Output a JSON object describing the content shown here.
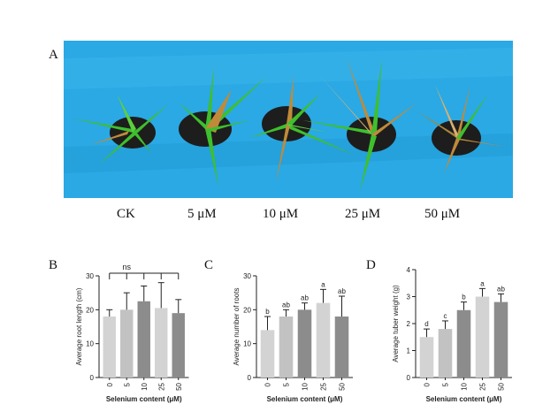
{
  "figure": {
    "panel_a_letter": "A",
    "photo_labels": [
      "CK",
      "5 μM",
      "10 μM",
      "25 μM",
      "50 μM"
    ],
    "colors": {
      "background_blue": "#2aa9e4",
      "leaf_green": "#3fbf2e",
      "leaf_brown": "#c08a3a",
      "pot": "#1d1d1d"
    }
  },
  "chart_data": [
    {
      "panel": "B",
      "type": "bar",
      "categories": [
        "0",
        "5",
        "10",
        "25",
        "50"
      ],
      "values": [
        18,
        20,
        22.5,
        20.5,
        19
      ],
      "errors": [
        2,
        5,
        4.5,
        7.5,
        4
      ],
      "letters": [
        "",
        "",
        "",
        "",
        ""
      ],
      "colors": [
        "#d3d3d3",
        "#c2c2c2",
        "#8c8c8c",
        "#d3d3d3",
        "#8c8c8c"
      ],
      "annotation": "ns",
      "xlabel": "Selenium content (μM)",
      "ylabel": "Average root length (cm)",
      "ylim": [
        0,
        30
      ],
      "yticks": [
        "0",
        "10",
        "20",
        "30"
      ]
    },
    {
      "panel": "C",
      "type": "bar",
      "categories": [
        "0",
        "5",
        "10",
        "25",
        "50"
      ],
      "values": [
        14,
        18,
        20,
        22,
        18
      ],
      "errors": [
        4,
        2,
        2,
        4,
        6
      ],
      "letters": [
        "b",
        "ab",
        "ab",
        "a",
        "ab"
      ],
      "colors": [
        "#d3d3d3",
        "#c2c2c2",
        "#8c8c8c",
        "#d3d3d3",
        "#8c8c8c"
      ],
      "annotation": "",
      "xlabel": "Selenium content (μM)",
      "ylabel": "Average number of roots",
      "ylim": [
        0,
        30
      ],
      "yticks": [
        "0",
        "10",
        "20",
        "30"
      ]
    },
    {
      "panel": "D",
      "type": "bar",
      "categories": [
        "0",
        "5",
        "10",
        "25",
        "50"
      ],
      "values": [
        1.5,
        1.8,
        2.5,
        3.0,
        2.8
      ],
      "errors": [
        0.3,
        0.3,
        0.3,
        0.3,
        0.3
      ],
      "letters": [
        "d",
        "c",
        "b",
        "a",
        "ab"
      ],
      "colors": [
        "#d3d3d3",
        "#c2c2c2",
        "#8c8c8c",
        "#d3d3d3",
        "#8c8c8c"
      ],
      "annotation": "",
      "xlabel": "Selenium content (μM)",
      "ylabel": "Average tuber weight (g)",
      "ylim": [
        0,
        4
      ],
      "yticks": [
        "0",
        "1",
        "2",
        "3",
        "4"
      ]
    }
  ]
}
